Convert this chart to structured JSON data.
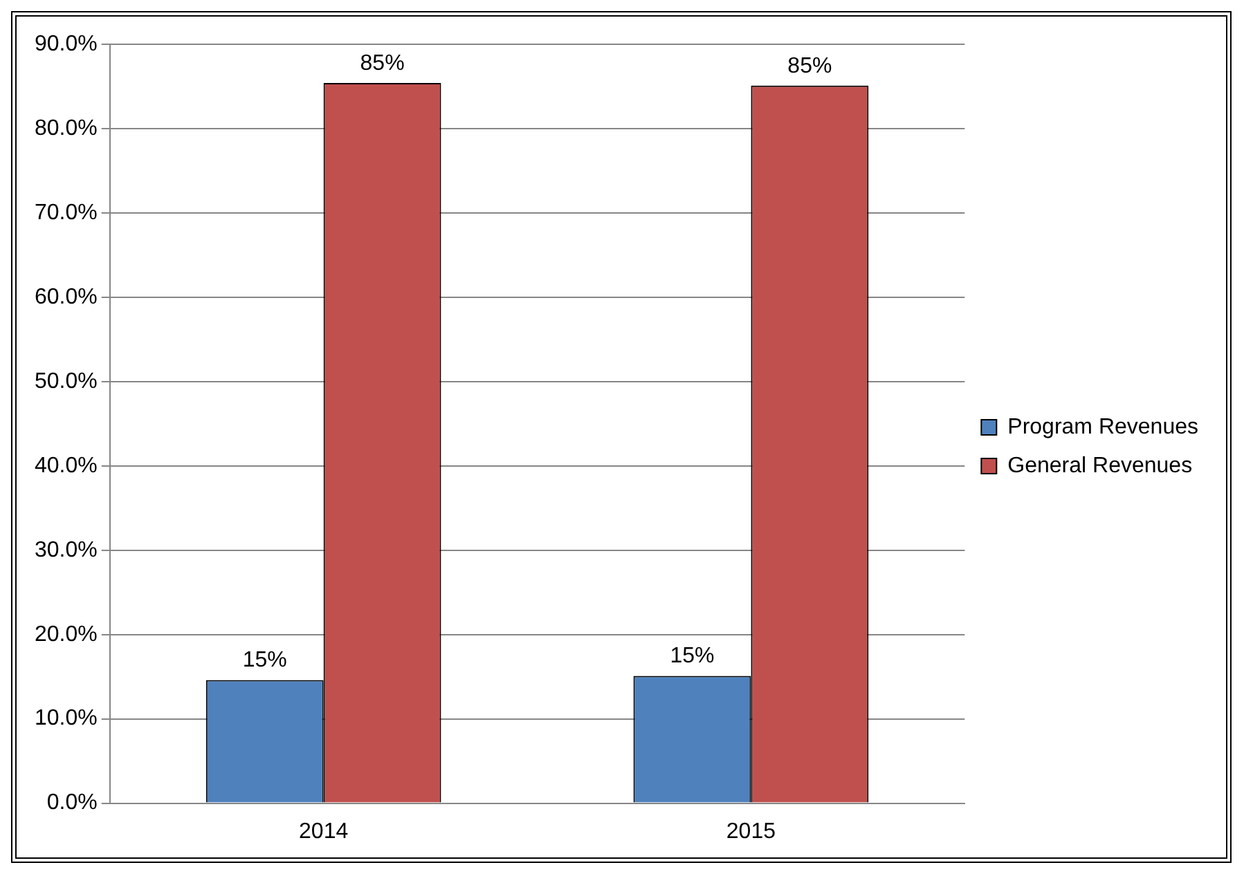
{
  "chart_data": {
    "type": "bar",
    "categories": [
      "2014",
      "2015"
    ],
    "series": [
      {
        "name": "Program Revenues",
        "color": "#4f81bd",
        "values": [
          14.6,
          15.1
        ],
        "value_labels": [
          "15%",
          "15%"
        ]
      },
      {
        "name": "General Revenues",
        "color": "#c0504d",
        "values": [
          85.4,
          85.1
        ],
        "value_labels": [
          "85%",
          "85%"
        ]
      }
    ],
    "ylim": [
      0,
      90
    ],
    "yticks": [
      {
        "value": 0,
        "label": "0.0%"
      },
      {
        "value": 10,
        "label": "10.0%"
      },
      {
        "value": 20,
        "label": "20.0%"
      },
      {
        "value": 30,
        "label": "30.0%"
      },
      {
        "value": 40,
        "label": "40.0%"
      },
      {
        "value": 50,
        "label": "50.0%"
      },
      {
        "value": 60,
        "label": "60.0%"
      },
      {
        "value": 70,
        "label": "70.0%"
      },
      {
        "value": 80,
        "label": "80.0%"
      },
      {
        "value": 90,
        "label": "90.0%"
      }
    ],
    "grid": "y",
    "legend": "right"
  }
}
